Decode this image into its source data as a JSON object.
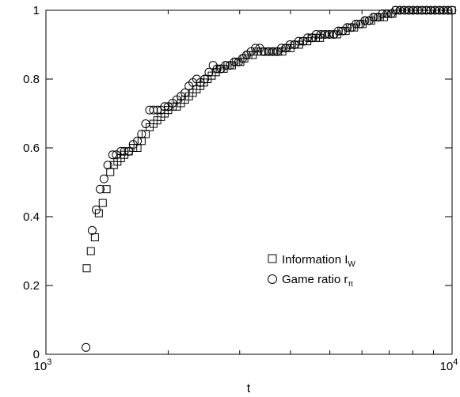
{
  "chart_data": {
    "type": "scatter",
    "title": "",
    "xlabel": "t",
    "ylabel": "",
    "x_scale": "log",
    "xlim": [
      1000,
      10000
    ],
    "ylim": [
      0,
      1
    ],
    "grid": false,
    "legend_position": "lower-right",
    "x_ticks": [
      {
        "value": 1000,
        "base": "10",
        "exp": "3"
      },
      {
        "value": 10000,
        "base": "10",
        "exp": "4"
      }
    ],
    "y_ticks": [
      {
        "value": 0,
        "label": "0"
      },
      {
        "value": 0.2,
        "label": "0.2"
      },
      {
        "value": 0.4,
        "label": "0.4"
      },
      {
        "value": 0.6,
        "label": "0.6"
      },
      {
        "value": 0.8,
        "label": "0.8"
      },
      {
        "value": 1,
        "label": "1"
      }
    ],
    "series": [
      {
        "name": "Information I",
        "name_sub": "W",
        "marker": "square",
        "points": [
          [
            1260,
            0.25
          ],
          [
            1290,
            0.3
          ],
          [
            1320,
            0.34
          ],
          [
            1350,
            0.41
          ],
          [
            1380,
            0.44
          ],
          [
            1410,
            0.48
          ],
          [
            1440,
            0.53
          ],
          [
            1470,
            0.55
          ],
          [
            1500,
            0.56
          ],
          [
            1530,
            0.57
          ],
          [
            1560,
            0.58
          ],
          [
            1600,
            0.59
          ],
          [
            1640,
            0.6
          ],
          [
            1680,
            0.6
          ],
          [
            1720,
            0.62
          ],
          [
            1760,
            0.64
          ],
          [
            1800,
            0.66
          ],
          [
            1840,
            0.67
          ],
          [
            1880,
            0.68
          ],
          [
            1920,
            0.69
          ],
          [
            1960,
            0.7
          ],
          [
            2000,
            0.71
          ],
          [
            2050,
            0.72
          ],
          [
            2100,
            0.72
          ],
          [
            2150,
            0.73
          ],
          [
            2200,
            0.74
          ],
          [
            2250,
            0.75
          ],
          [
            2300,
            0.76
          ],
          [
            2350,
            0.77
          ],
          [
            2400,
            0.78
          ],
          [
            2450,
            0.79
          ],
          [
            2500,
            0.8
          ],
          [
            2560,
            0.81
          ],
          [
            2620,
            0.82
          ],
          [
            2680,
            0.83
          ],
          [
            2740,
            0.83
          ],
          [
            2800,
            0.84
          ],
          [
            2870,
            0.84
          ],
          [
            2940,
            0.85
          ],
          [
            3010,
            0.85
          ],
          [
            3080,
            0.86
          ],
          [
            3150,
            0.87
          ],
          [
            3230,
            0.87
          ],
          [
            3310,
            0.88
          ],
          [
            3390,
            0.88
          ],
          [
            3470,
            0.88
          ],
          [
            3550,
            0.88
          ],
          [
            3640,
            0.88
          ],
          [
            3730,
            0.88
          ],
          [
            3820,
            0.88
          ],
          [
            3910,
            0.89
          ],
          [
            4000,
            0.89
          ],
          [
            4100,
            0.9
          ],
          [
            4200,
            0.9
          ],
          [
            4300,
            0.91
          ],
          [
            4400,
            0.91
          ],
          [
            4510,
            0.92
          ],
          [
            4620,
            0.92
          ],
          [
            4730,
            0.92
          ],
          [
            4850,
            0.93
          ],
          [
            4970,
            0.93
          ],
          [
            5090,
            0.93
          ],
          [
            5210,
            0.93
          ],
          [
            5340,
            0.94
          ],
          [
            5470,
            0.94
          ],
          [
            5600,
            0.95
          ],
          [
            5740,
            0.95
          ],
          [
            5880,
            0.96
          ],
          [
            6020,
            0.96
          ],
          [
            6170,
            0.97
          ],
          [
            6320,
            0.97
          ],
          [
            6480,
            0.98
          ],
          [
            6640,
            0.98
          ],
          [
            6800,
            0.98
          ],
          [
            6960,
            0.99
          ],
          [
            7130,
            0.99
          ],
          [
            7300,
            1.0
          ],
          [
            7480,
            1.0
          ],
          [
            7660,
            1.0
          ],
          [
            7850,
            1.0
          ],
          [
            8040,
            1.0
          ],
          [
            8230,
            1.0
          ],
          [
            8430,
            1.0
          ],
          [
            8640,
            1.0
          ],
          [
            8850,
            1.0
          ],
          [
            9060,
            1.0
          ],
          [
            9280,
            1.0
          ],
          [
            9510,
            1.0
          ],
          [
            9740,
            1.0
          ],
          [
            9980,
            1.0
          ]
        ]
      },
      {
        "name": "Game ratio r",
        "name_sub": "π",
        "marker": "circle",
        "points": [
          [
            1255,
            0.02
          ],
          [
            1300,
            0.36
          ],
          [
            1330,
            0.42
          ],
          [
            1360,
            0.48
          ],
          [
            1390,
            0.51
          ],
          [
            1420,
            0.55
          ],
          [
            1460,
            0.58
          ],
          [
            1490,
            0.58
          ],
          [
            1530,
            0.59
          ],
          [
            1560,
            0.59
          ],
          [
            1600,
            0.59
          ],
          [
            1640,
            0.61
          ],
          [
            1680,
            0.62
          ],
          [
            1720,
            0.64
          ],
          [
            1760,
            0.67
          ],
          [
            1800,
            0.71
          ],
          [
            1840,
            0.71
          ],
          [
            1880,
            0.71
          ],
          [
            1920,
            0.71
          ],
          [
            1960,
            0.72
          ],
          [
            2000,
            0.72
          ],
          [
            2050,
            0.73
          ],
          [
            2100,
            0.74
          ],
          [
            2150,
            0.75
          ],
          [
            2200,
            0.76
          ],
          [
            2250,
            0.78
          ],
          [
            2300,
            0.79
          ],
          [
            2350,
            0.8
          ],
          [
            2400,
            0.79
          ],
          [
            2460,
            0.8
          ],
          [
            2520,
            0.82
          ],
          [
            2580,
            0.84
          ],
          [
            2640,
            0.83
          ],
          [
            2700,
            0.83
          ],
          [
            2770,
            0.84
          ],
          [
            2840,
            0.84
          ],
          [
            2910,
            0.85
          ],
          [
            2980,
            0.85
          ],
          [
            3050,
            0.86
          ],
          [
            3120,
            0.87
          ],
          [
            3200,
            0.88
          ],
          [
            3280,
            0.89
          ],
          [
            3360,
            0.89
          ],
          [
            3440,
            0.88
          ],
          [
            3530,
            0.88
          ],
          [
            3620,
            0.88
          ],
          [
            3710,
            0.88
          ],
          [
            3800,
            0.89
          ],
          [
            3890,
            0.89
          ],
          [
            3990,
            0.9
          ],
          [
            4090,
            0.9
          ],
          [
            4190,
            0.91
          ],
          [
            4300,
            0.91
          ],
          [
            4410,
            0.92
          ],
          [
            4520,
            0.92
          ],
          [
            4630,
            0.93
          ],
          [
            4750,
            0.93
          ],
          [
            4870,
            0.93
          ],
          [
            4990,
            0.93
          ],
          [
            5120,
            0.93
          ],
          [
            5250,
            0.94
          ],
          [
            5380,
            0.94
          ],
          [
            5520,
            0.95
          ],
          [
            5660,
            0.95
          ],
          [
            5800,
            0.96
          ],
          [
            5950,
            0.96
          ],
          [
            6100,
            0.97
          ],
          [
            6250,
            0.97
          ],
          [
            6410,
            0.98
          ],
          [
            6570,
            0.98
          ],
          [
            6740,
            0.99
          ],
          [
            6910,
            0.99
          ],
          [
            7080,
            0.99
          ],
          [
            7260,
            1.0
          ],
          [
            7440,
            1.0
          ],
          [
            7630,
            1.0
          ],
          [
            7820,
            1.0
          ],
          [
            8020,
            1.0
          ],
          [
            8220,
            1.0
          ],
          [
            8430,
            1.0
          ],
          [
            8640,
            1.0
          ],
          [
            8860,
            1.0
          ],
          [
            9080,
            1.0
          ],
          [
            9310,
            1.0
          ],
          [
            9540,
            1.0
          ],
          [
            9780,
            1.0
          ],
          [
            9990,
            1.0
          ]
        ]
      }
    ]
  }
}
